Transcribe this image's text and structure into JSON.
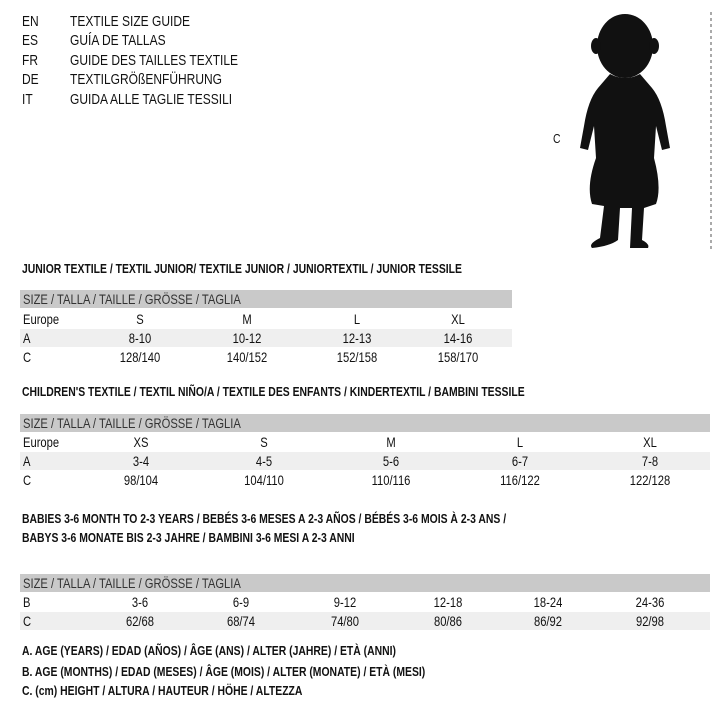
{
  "languages": [
    {
      "code": "EN",
      "title": "TEXTILE SIZE GUIDE"
    },
    {
      "code": "ES",
      "title": "GUÍA DE TALLAS"
    },
    {
      "code": "FR",
      "title": "GUIDE DES TAILLES TEXTILE"
    },
    {
      "code": "DE",
      "title": "TEXTILGRÖßENFÜHRUNG"
    },
    {
      "code": "IT",
      "title": "GUIDA ALLE TAGLIE TESSILI"
    }
  ],
  "figure": {
    "height_label": "C",
    "icon": "baby-silhouette"
  },
  "junior": {
    "heading": "JUNIOR TEXTILE / TEXTIL JUNIOR/ TEXTILE JUNIOR / JUNIORTEXTIL / JUNIOR TESSILE",
    "header": "SIZE / TALLA / TAILLE / GRÖSSE / TAGLIA",
    "rows": [
      {
        "label": "Europe",
        "cells": [
          "S",
          "M",
          "L",
          "XL"
        ]
      },
      {
        "label": "A",
        "cells": [
          "8-10",
          "10-12",
          "12-13",
          "14-16"
        ]
      },
      {
        "label": "C",
        "cells": [
          "128/140",
          "140/152",
          "152/158",
          "158/170"
        ]
      }
    ]
  },
  "children": {
    "heading": "CHILDREN'S TEXTILE / TEXTIL NIÑO/A / TEXTILE DES ENFANTS / KINDERTEXTIL / BAMBINI TESSILE",
    "header": "SIZE / TALLA / TAILLE / GRÖSSE / TAGLIA",
    "rows": [
      {
        "label": "Europe",
        "cells": [
          "XS",
          "S",
          "M",
          "L",
          "XL"
        ]
      },
      {
        "label": "A",
        "cells": [
          "3-4",
          "4-5",
          "5-6",
          "6-7",
          "7-8"
        ]
      },
      {
        "label": "C",
        "cells": [
          "98/104",
          "104/110",
          "110/116",
          "116/122",
          "122/128"
        ]
      }
    ]
  },
  "babies": {
    "heading_1": "BABIES 3-6 MONTH TO 2-3 YEARS / BEBÉS 3-6 MESES A 2-3 AÑOS / BÉBÉS 3-6 MOIS À 2-3 ANS /",
    "heading_2": "BABYS 3-6 MONATE BIS 2-3 JAHRE / BAMBINI 3-6 MESI A 2-3 ANNI",
    "header": "SIZE / TALLA / TAILLE / GRÖSSE / TAGLIA",
    "rows": [
      {
        "label": "B",
        "cells": [
          "3-6",
          "6-9",
          "9-12",
          "12-18",
          "18-24",
          "24-36"
        ]
      },
      {
        "label": "C",
        "cells": [
          "62/68",
          "68/74",
          "74/80",
          "80/86",
          "86/92",
          "92/98"
        ]
      }
    ]
  },
  "legend": [
    "A. AGE (YEARS) / EDAD (AÑOS) / ÂGE (ANS) / ALTER (JAHRE) / ETÀ (ANNI)",
    "B. AGE (MONTHS) / EDAD (MESES) / ÂGE (MOIS) / ALTER (MONATE) / ETÀ (MESI)",
    "C. (cm) HEIGHT / ALTURA / HAUTEUR / HÖHE / ALTEZZA"
  ]
}
